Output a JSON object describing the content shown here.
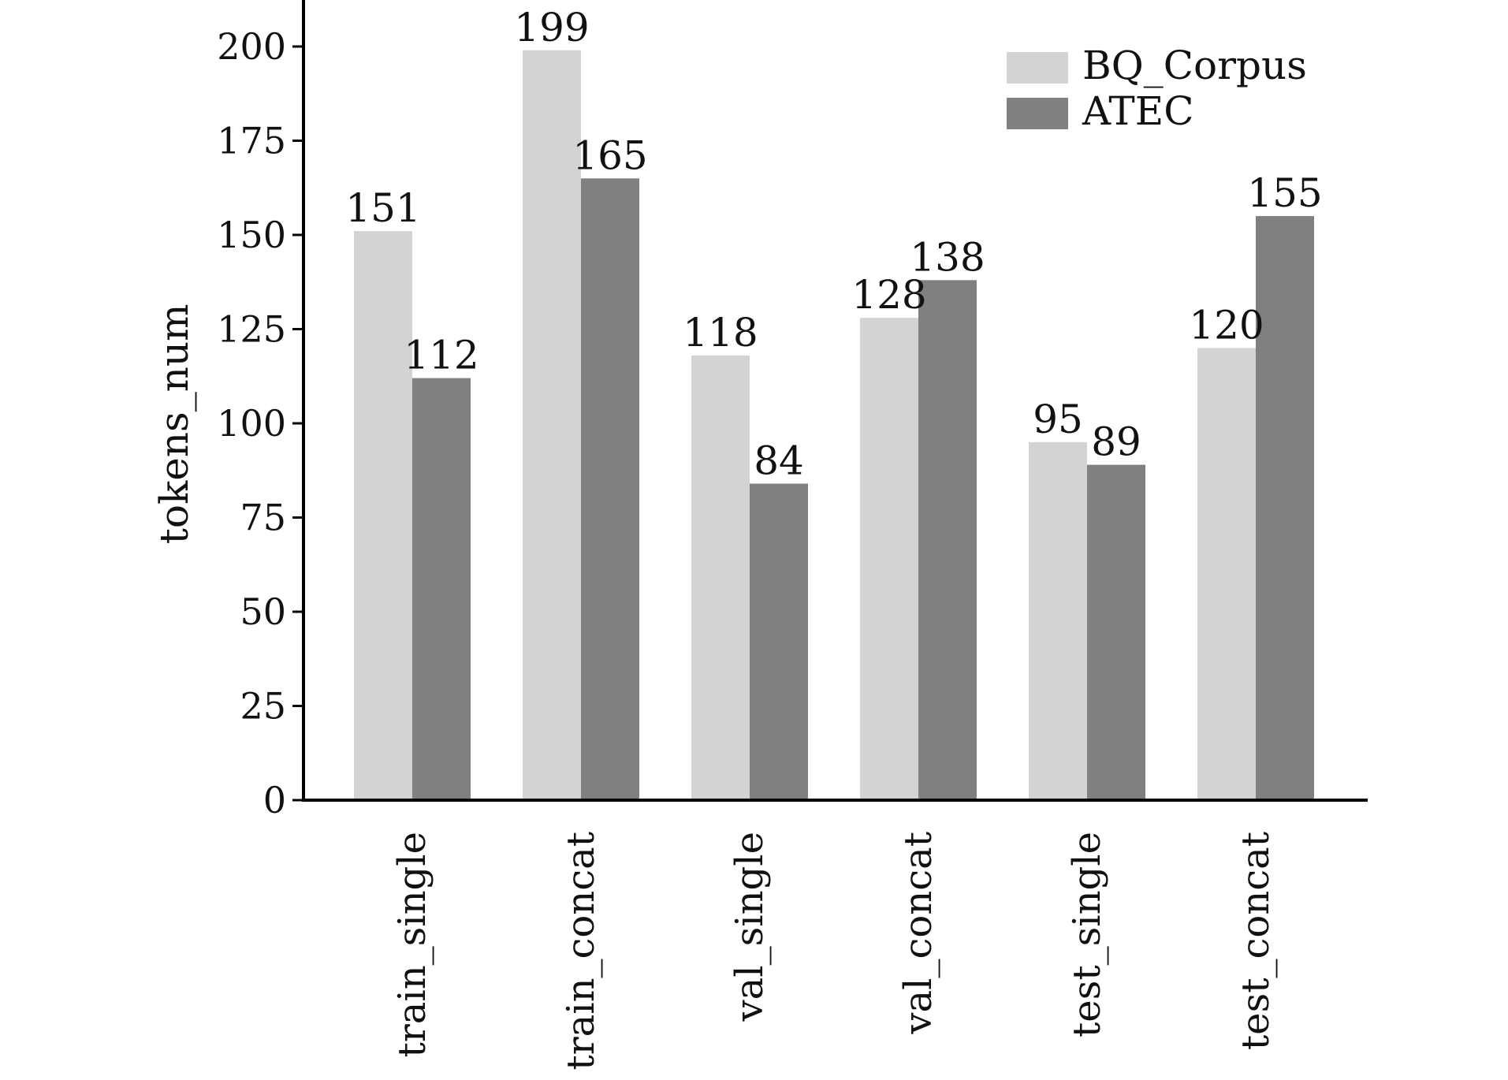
{
  "chart_data": {
    "type": "bar",
    "title": "",
    "xlabel": "",
    "ylabel": "tokens_num",
    "categories": [
      "train_single",
      "train_concat",
      "val_single",
      "val_concat",
      "test_single",
      "test_concat"
    ],
    "series": [
      {
        "name": "BQ_Corpus",
        "color": "#d3d3d3",
        "values": [
          151,
          199,
          118,
          128,
          95,
          120
        ]
      },
      {
        "name": "ATEC",
        "color": "#808080",
        "values": [
          112,
          165,
          84,
          138,
          89,
          155
        ]
      }
    ],
    "ylim": [
      0,
      208
    ],
    "yticks": [
      0,
      25,
      50,
      75,
      100,
      125,
      150,
      175,
      200
    ],
    "grid": false,
    "legend": "top-right",
    "data_labels": true
  }
}
